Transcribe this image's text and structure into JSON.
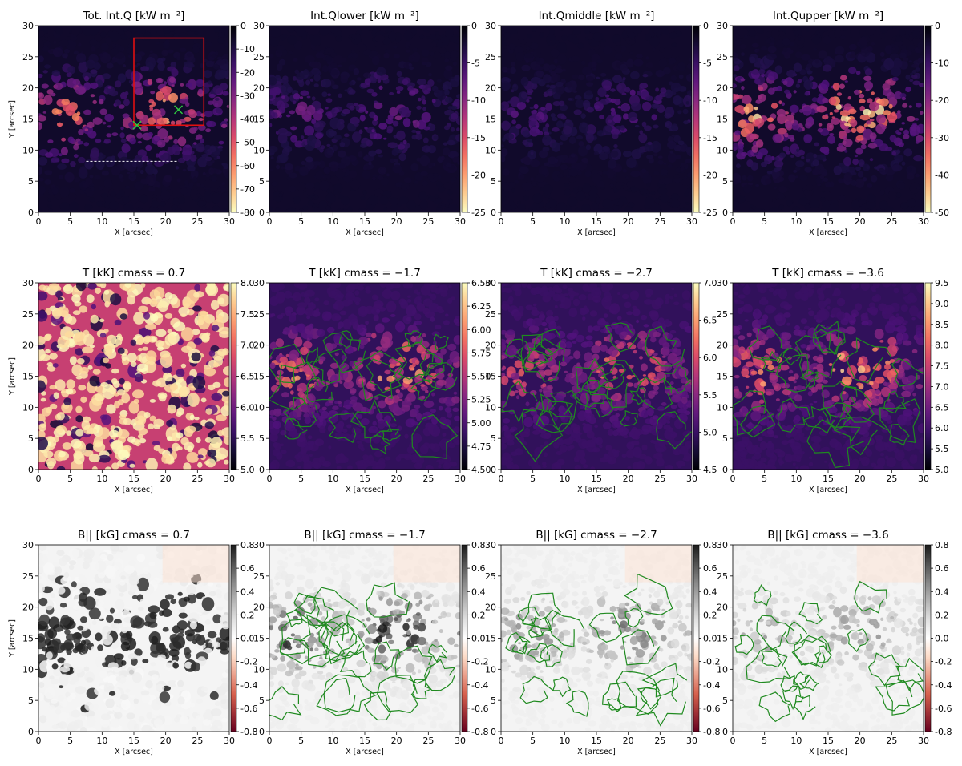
{
  "figure": {
    "panels": [
      {
        "id": "q-total",
        "title": "Tot. Int.Q [kW m⁻²]",
        "cmap": "magma_r",
        "clim": [
          -80,
          0
        ],
        "cbar_ticks": [
          "0",
          "-10",
          "-20",
          "-30",
          "-40",
          "-50",
          "-60",
          "-70",
          "-80"
        ],
        "ylabel": "Y [arcsec]",
        "xlabel": "X [arcsec]",
        "intensity": 0.65,
        "has_box": true,
        "has_crosses": true,
        "has_dashed_line": true
      },
      {
        "id": "q-lower",
        "title": "Int.Qlower [kW m⁻²]",
        "cmap": "magma_r",
        "clim": [
          -25,
          0
        ],
        "cbar_ticks": [
          "0",
          "-5",
          "-10",
          "-15",
          "-20",
          "-25"
        ],
        "ylabel": "",
        "xlabel": "X [arcsec]",
        "intensity": 0.25
      },
      {
        "id": "q-middle",
        "title": "Int.Qmiddle [kW m⁻²]",
        "cmap": "magma_r",
        "clim": [
          -25,
          0
        ],
        "cbar_ticks": [
          "0",
          "-5",
          "-10",
          "-15",
          "-20",
          "-25"
        ],
        "ylabel": "",
        "xlabel": "X [arcsec]",
        "intensity": 0.18
      },
      {
        "id": "q-upper",
        "title": "Int.Qupper [kW m⁻²]",
        "cmap": "magma_r",
        "clim": [
          -50,
          0
        ],
        "cbar_ticks": [
          "0",
          "-10",
          "-20",
          "-30",
          "-40",
          "-50"
        ],
        "ylabel": "",
        "xlabel": "X [arcsec]",
        "intensity": 0.75
      },
      {
        "id": "t-07",
        "title": "T [kK] cmass = 0.7",
        "cmap": "magma",
        "clim": [
          5.0,
          8.0
        ],
        "cbar_ticks": [
          "8.0",
          "7.5",
          "7.0",
          "6.5",
          "6.0",
          "5.5",
          "5.0"
        ],
        "ylabel": "Y [arcsec]",
        "xlabel": "X [arcsec]",
        "intensity": 0.9,
        "granular": true
      },
      {
        "id": "t-17",
        "title": "T [kK] cmass = −1.7",
        "cmap": "magma",
        "clim": [
          4.5,
          6.5
        ],
        "cbar_ticks": [
          "6.50",
          "6.25",
          "6.00",
          "5.75",
          "5.50",
          "5.25",
          "5.00",
          "4.75",
          "4.50"
        ],
        "ylabel": "",
        "xlabel": "X [arcsec]",
        "intensity": 0.55,
        "contours": true
      },
      {
        "id": "t-27",
        "title": "T [kK] cmass = −2.7",
        "cmap": "magma",
        "clim": [
          4.5,
          7.0
        ],
        "cbar_ticks": [
          "7.0",
          "6.5",
          "6.0",
          "5.5",
          "5.0",
          "4.5"
        ],
        "ylabel": "",
        "xlabel": "X [arcsec]",
        "intensity": 0.45,
        "contours": true
      },
      {
        "id": "t-36",
        "title": "T [kK] cmass = −3.6",
        "cmap": "magma",
        "clim": [
          5.0,
          9.5
        ],
        "cbar_ticks": [
          "9.5",
          "9.0",
          "8.5",
          "8.0",
          "7.5",
          "7.0",
          "6.5",
          "6.0",
          "5.5",
          "5.0"
        ],
        "ylabel": "",
        "xlabel": "X [arcsec]",
        "intensity": 0.6,
        "contours": true
      },
      {
        "id": "b-07",
        "title": "B|| [kG] cmass = 0.7",
        "cmap": "RdGy",
        "clim": [
          -0.8,
          0.8
        ],
        "cbar_ticks": [
          "0.8",
          "0.6",
          "0.4",
          "0.2",
          "0.0",
          "-0.2",
          "-0.4",
          "-0.6",
          "-0.8"
        ],
        "ylabel": "Y [arcsec]",
        "xlabel": "X [arcsec]",
        "intensity": 0.9
      },
      {
        "id": "b-17",
        "title": "B|| [kG] cmass = −1.7",
        "cmap": "RdGy",
        "clim": [
          -0.8,
          0.8
        ],
        "cbar_ticks": [
          "0.8",
          "0.6",
          "0.4",
          "0.2",
          "0.0",
          "-0.2",
          "-0.4",
          "-0.6",
          "-0.8"
        ],
        "ylabel": "",
        "xlabel": "X [arcsec]",
        "intensity": 0.6,
        "contours": true
      },
      {
        "id": "b-27",
        "title": "B|| [kG] cmass = −2.7",
        "cmap": "RdGy",
        "clim": [
          -0.8,
          0.8
        ],
        "cbar_ticks": [
          "0.8",
          "0.6",
          "0.4",
          "0.2",
          "0.0",
          "-0.2",
          "-0.4",
          "-0.6",
          "-0.8"
        ],
        "ylabel": "",
        "xlabel": "X [arcsec]",
        "intensity": 0.4,
        "contours": true
      },
      {
        "id": "b-36",
        "title": "B|| [kG] cmass = −3.6",
        "cmap": "RdGy",
        "clim": [
          -0.8,
          0.8
        ],
        "cbar_ticks": [
          "0.8",
          "0.6",
          "0.4",
          "0.2",
          "0.0",
          "-0.2",
          "-0.4",
          "-0.6",
          "-0.8"
        ],
        "ylabel": "",
        "xlabel": "X [arcsec]",
        "intensity": 0.3,
        "contours": true
      }
    ],
    "axis_ticks": [
      "0",
      "5",
      "10",
      "15",
      "20",
      "25",
      "30"
    ]
  },
  "chart_data": [
    {
      "type": "heatmap",
      "title": "Tot. Int.Q [kW m⁻²]",
      "xlabel": "X [arcsec]",
      "ylabel": "Y [arcsec]",
      "xlim": [
        0,
        30
      ],
      "ylim": [
        0,
        30
      ],
      "clim": [
        -80,
        0
      ],
      "annotations": {
        "box": {
          "x": [
            15,
            26
          ],
          "y": [
            14,
            28
          ]
        },
        "crosses": [
          [
            15.5,
            14
          ],
          [
            22,
            16.5
          ]
        ],
        "dashed_line": {
          "x": [
            7.5,
            22
          ],
          "y": 8.2
        }
      }
    },
    {
      "type": "heatmap",
      "title": "Int.Qlower [kW m⁻²]",
      "xlabel": "X [arcsec]",
      "xlim": [
        0,
        30
      ],
      "ylim": [
        0,
        30
      ],
      "clim": [
        -25,
        0
      ]
    },
    {
      "type": "heatmap",
      "title": "Int.Qmiddle [kW m⁻²]",
      "xlabel": "X [arcsec]",
      "xlim": [
        0,
        30
      ],
      "ylim": [
        0,
        30
      ],
      "clim": [
        -25,
        0
      ]
    },
    {
      "type": "heatmap",
      "title": "Int.Qupper [kW m⁻²]",
      "xlabel": "X [arcsec]",
      "xlim": [
        0,
        30
      ],
      "ylim": [
        0,
        30
      ],
      "clim": [
        -50,
        0
      ]
    },
    {
      "type": "heatmap",
      "title": "T [kK] cmass = 0.7",
      "xlabel": "X [arcsec]",
      "ylabel": "Y [arcsec]",
      "xlim": [
        0,
        30
      ],
      "ylim": [
        0,
        30
      ],
      "clim": [
        5.0,
        8.0
      ]
    },
    {
      "type": "heatmap",
      "title": "T [kK] cmass = −1.7",
      "xlabel": "X [arcsec]",
      "xlim": [
        0,
        30
      ],
      "ylim": [
        0,
        30
      ],
      "clim": [
        4.5,
        6.5
      ]
    },
    {
      "type": "heatmap",
      "title": "T [kK] cmass = −2.7",
      "xlabel": "X [arcsec]",
      "xlim": [
        0,
        30
      ],
      "ylim": [
        0,
        30
      ],
      "clim": [
        4.5,
        7.0
      ]
    },
    {
      "type": "heatmap",
      "title": "T [kK] cmass = −3.6",
      "xlabel": "X [arcsec]",
      "xlim": [
        0,
        30
      ],
      "ylim": [
        0,
        30
      ],
      "clim": [
        5.0,
        9.5
      ]
    },
    {
      "type": "heatmap",
      "title": "B|| [kG] cmass = 0.7",
      "xlabel": "X [arcsec]",
      "ylabel": "Y [arcsec]",
      "xlim": [
        0,
        30
      ],
      "ylim": [
        0,
        30
      ],
      "clim": [
        -0.8,
        0.8
      ]
    },
    {
      "type": "heatmap",
      "title": "B|| [kG] cmass = −1.7",
      "xlabel": "X [arcsec]",
      "xlim": [
        0,
        30
      ],
      "ylim": [
        0,
        30
      ],
      "clim": [
        -0.8,
        0.8
      ]
    },
    {
      "type": "heatmap",
      "title": "B|| [kG] cmass = −2.7",
      "xlabel": "X [arcsec]",
      "xlim": [
        0,
        30
      ],
      "ylim": [
        0,
        30
      ],
      "clim": [
        -0.8,
        0.8
      ]
    },
    {
      "type": "heatmap",
      "title": "B|| [kG] cmass = −3.6",
      "xlabel": "X [arcsec]",
      "xlim": [
        0,
        30
      ],
      "ylim": [
        0,
        30
      ],
      "clim": [
        -0.8,
        0.8
      ]
    }
  ]
}
